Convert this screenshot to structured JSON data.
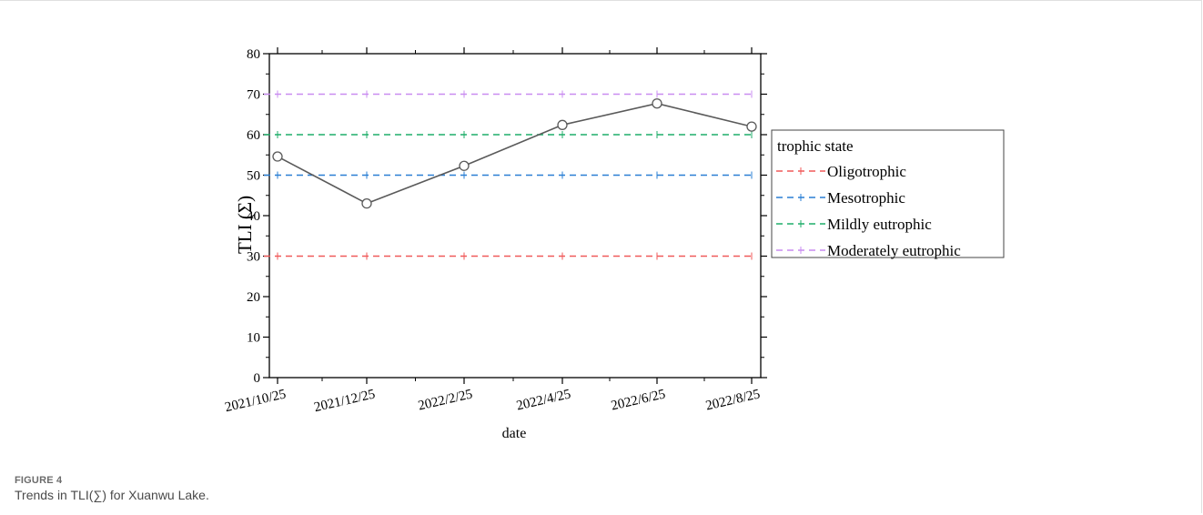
{
  "figure": {
    "label": "FIGURE 4",
    "caption": "Trends in TLI(∑) for Xuanwu Lake."
  },
  "chart_data": {
    "type": "line",
    "title": "",
    "xlabel": "date",
    "ylabel": "TLI (Σ)",
    "x": [
      "2021/10/25",
      "2021/12/25",
      "2022/2/25",
      "2022/4/25",
      "2022/6/25",
      "2022/8/25"
    ],
    "ylim": [
      0,
      80
    ],
    "yticks": [
      0,
      10,
      20,
      30,
      40,
      50,
      60,
      70,
      80
    ],
    "grid": false,
    "series": [
      {
        "values": [
          54.6,
          43.0,
          52.3,
          62.4,
          67.7,
          62.0
        ],
        "color": "#5a5a5a",
        "marker": "open-circle"
      }
    ],
    "reference_lines": [
      {
        "name": "Oligotrophic",
        "value": 30,
        "color": "#f05a5a",
        "style": "dashed"
      },
      {
        "name": "Mesotrophic",
        "value": 50,
        "color": "#2a7fd4",
        "style": "dashed"
      },
      {
        "name": "Mildly eutrophic",
        "value": 60,
        "color": "#1fae6a",
        "style": "dashed"
      },
      {
        "name": "Moderately eutrophic",
        "value": 70,
        "color": "#c98cf0",
        "style": "dashed"
      }
    ],
    "legend": {
      "title": "trophic state",
      "placement": "right"
    }
  }
}
